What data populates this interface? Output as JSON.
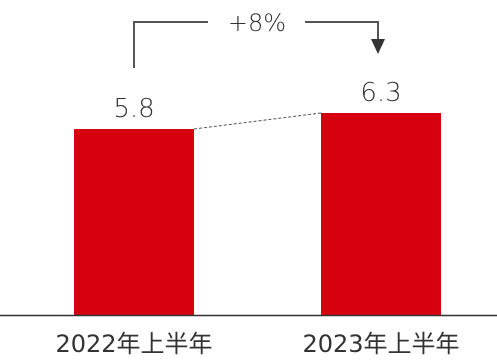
{
  "chart_data": {
    "type": "bar",
    "categories": [
      "2022年上半年",
      "2023年上半年"
    ],
    "values": [
      5.8,
      6.3
    ],
    "value_labels": [
      "5.8",
      "6.3"
    ],
    "ylim": [
      0,
      6.3
    ],
    "grid": false,
    "annotation": {
      "text": "+8%",
      "from_category": "2022年上半年",
      "to_category": "2023年上半年"
    },
    "colors": {
      "bar": "#d7000f",
      "text": "#333333",
      "connector": "#555555",
      "axis": "#333333"
    }
  }
}
